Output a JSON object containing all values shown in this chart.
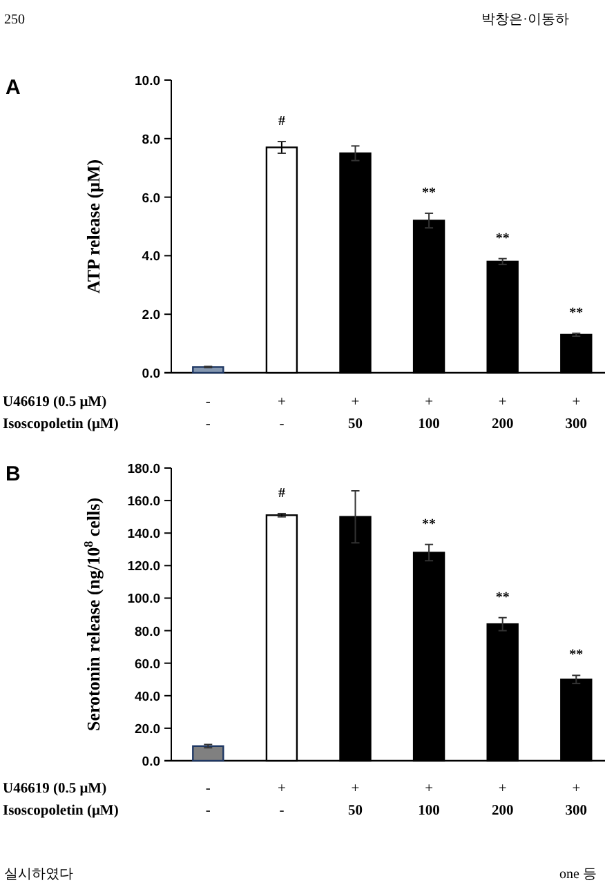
{
  "chart_data": [
    {
      "type": "bar",
      "title": "A",
      "ylabel": "ATP release (μM)",
      "categories": [
        "-\n-",
        "+\n-",
        "+\n50",
        "+\n100",
        "+\n200",
        "+\n300"
      ],
      "values": [
        0.2,
        7.7,
        7.5,
        5.2,
        3.8,
        1.3
      ],
      "errors": [
        0.02,
        0.2,
        0.25,
        0.25,
        0.1,
        0.05
      ],
      "colors": [
        "#8497b0",
        "#ffffff",
        "#000000",
        "#000000",
        "#000000",
        "#000000"
      ],
      "ylim": [
        0,
        10
      ],
      "yticks": [
        {
          "value": 0,
          "label": "0.0"
        },
        {
          "value": 2,
          "label": "2.0"
        },
        {
          "value": 4,
          "label": "4.0"
        },
        {
          "value": 6,
          "label": "6.0"
        },
        {
          "value": 8,
          "label": "8.0"
        },
        {
          "value": 10,
          "label": "10.0"
        }
      ],
      "value_labels": [
        null,
        "#",
        null,
        "**",
        "**",
        "**"
      ],
      "annotations": [
        "U46619 (0.5 μM)",
        "Isoscopoletin (μM)",
        "250",
        "박창은·이동하"
      ]
    },
    {
      "type": "bar",
      "title": "B",
      "ylabel": "Serotonin release (ng/10$^{8}$ cells)",
      "categories": [
        "-\n-",
        "+\n-",
        "+\n50",
        "+\n100",
        "+\n200",
        "+\n300"
      ],
      "values": [
        9,
        151,
        150,
        128,
        84,
        50
      ],
      "errors": [
        1,
        1,
        16,
        5,
        4,
        2.5
      ],
      "colors": [
        "#808080",
        "#ffffff",
        "#000000",
        "#000000",
        "#000000",
        "#000000"
      ],
      "ylim": [
        0,
        180
      ],
      "yticks": [
        {
          "value": 0,
          "label": "0.0"
        },
        {
          "value": 20,
          "label": "20.0"
        },
        {
          "value": 40,
          "label": "40.0"
        },
        {
          "value": 60,
          "label": "60.0"
        },
        {
          "value": 80,
          "label": "80.0"
        },
        {
          "value": 100,
          "label": "100.0"
        },
        {
          "value": 120,
          "label": "120.0"
        },
        {
          "value": 140,
          "label": "140.0"
        },
        {
          "value": 160,
          "label": "160.0"
        },
        {
          "value": 180,
          "label": "180.0"
        }
      ],
      "value_labels": [
        null,
        "#",
        null,
        "**",
        "**",
        "**"
      ],
      "annotations": [
        "U46619 (0.5 μM)",
        "Isoscopoletin (μM)",
        "실시하였다",
        "one 등"
      ]
    }
  ]
}
